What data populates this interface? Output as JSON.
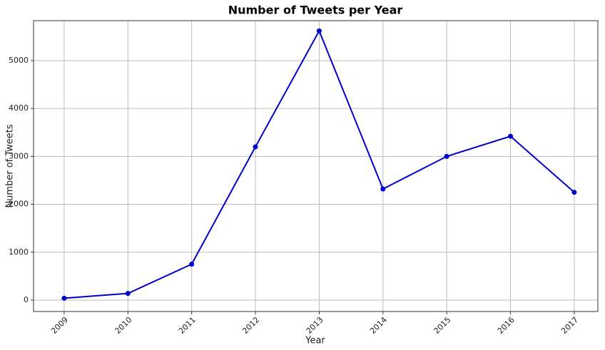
{
  "chart_data": {
    "type": "line",
    "title": "Number of Tweets per Year",
    "x_label": "Year",
    "y_label": "Number of Tweets",
    "x": [
      2009,
      2010,
      2011,
      2012,
      2013,
      2014,
      2015,
      2016,
      2017
    ],
    "series": [
      {
        "name": "Number of Tweets",
        "color": "#0000cc",
        "values": [
          40,
          140,
          750,
          3200,
          5620,
          2320,
          3000,
          3420,
          2250
        ]
      }
    ],
    "xlim": [
      2008.52,
      2017.37
    ],
    "xticks": [
      2009,
      2010,
      2011,
      2012,
      2013,
      2014,
      2015,
      2016,
      2017
    ],
    "ylim": [
      -238,
      5833
    ],
    "yticks": [
      0,
      1000,
      2000,
      3000,
      4000,
      5000
    ],
    "grid": true
  }
}
